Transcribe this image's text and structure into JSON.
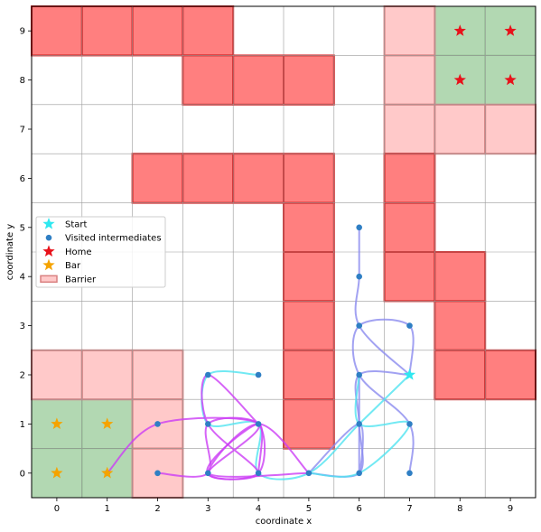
{
  "chart_data": {
    "type": "grid-path",
    "title": "",
    "xlabel": "coordinate x",
    "ylabel": "coordinate y",
    "xlim": [
      -0.5,
      9.5
    ],
    "ylim": [
      -0.5,
      9.5
    ],
    "xticks": [
      "0",
      "1",
      "2",
      "3",
      "4",
      "5",
      "6",
      "7",
      "8",
      "9"
    ],
    "yticks": [
      "0",
      "1",
      "2",
      "3",
      "4",
      "5",
      "6",
      "7",
      "8",
      "9"
    ],
    "grid": true,
    "legend_position": "center-left",
    "legend": [
      {
        "key": "start",
        "label": "Start"
      },
      {
        "key": "visited",
        "label": "Visited intermediates"
      },
      {
        "key": "home",
        "label": "Home"
      },
      {
        "key": "bar",
        "label": "Bar"
      },
      {
        "key": "barrier",
        "label": "Barrier"
      }
    ],
    "colors": {
      "barrier": "#ff7f7f",
      "barrier_edge": "#d62728",
      "soft_barrier": "#ffc9c9",
      "soft_barrier_edge": "#d98080",
      "home_area": "#b2d8b2",
      "start": "#2fe8f0",
      "visited": "#2f7fc4",
      "home": "#e8111a",
      "bar": "#f5a300",
      "gridline": "#9a9a9a"
    },
    "barriers": [
      [
        0,
        9
      ],
      [
        1,
        9
      ],
      [
        2,
        9
      ],
      [
        3,
        9
      ],
      [
        3,
        8
      ],
      [
        4,
        8
      ],
      [
        5,
        8
      ],
      [
        2,
        6
      ],
      [
        3,
        6
      ],
      [
        4,
        6
      ],
      [
        5,
        6
      ],
      [
        7,
        6
      ],
      [
        5,
        5
      ],
      [
        7,
        5
      ],
      [
        5,
        4
      ],
      [
        7,
        4
      ],
      [
        8,
        4
      ],
      [
        5,
        3
      ],
      [
        8,
        3
      ],
      [
        5,
        2
      ],
      [
        8,
        2
      ],
      [
        9,
        2
      ],
      [
        5,
        1
      ]
    ],
    "soft_barriers": [
      [
        7,
        9
      ],
      [
        7,
        8
      ],
      [
        7,
        7
      ],
      [
        8,
        7
      ],
      [
        9,
        7
      ],
      [
        0,
        2
      ],
      [
        1,
        2
      ],
      [
        2,
        2
      ],
      [
        2,
        1
      ],
      [
        2,
        0
      ]
    ],
    "home_cells": [
      [
        8,
        9
      ],
      [
        9,
        9
      ],
      [
        8,
        8
      ],
      [
        9,
        8
      ]
    ],
    "bar_cells": [
      [
        0,
        1
      ],
      [
        1,
        1
      ],
      [
        0,
        0
      ],
      [
        1,
        0
      ]
    ],
    "home_markers": [
      [
        8,
        9
      ],
      [
        9,
        9
      ],
      [
        8,
        8
      ],
      [
        9,
        8
      ]
    ],
    "bar_markers": [
      [
        0,
        1
      ],
      [
        1,
        1
      ],
      [
        0,
        0
      ],
      [
        1,
        0
      ]
    ],
    "start_points": [
      [
        7,
        2
      ]
    ],
    "visited_points": [
      [
        6,
        5
      ],
      [
        6,
        4
      ],
      [
        6,
        3
      ],
      [
        7,
        3
      ],
      [
        6,
        2
      ],
      [
        6,
        1
      ],
      [
        7,
        1
      ],
      [
        6,
        0
      ],
      [
        7,
        0
      ],
      [
        5,
        0
      ],
      [
        4,
        0
      ],
      [
        4,
        1
      ],
      [
        3,
        1
      ],
      [
        3,
        0
      ],
      [
        2,
        0
      ],
      [
        2,
        1
      ],
      [
        3,
        2
      ],
      [
        4,
        2
      ],
      [
        1,
        0
      ]
    ],
    "paths_blue": [
      [
        [
          7,
          2
        ],
        [
          6,
          2
        ],
        [
          6,
          1
        ],
        [
          6,
          0
        ],
        [
          5,
          0
        ]
      ],
      [
        [
          7,
          2
        ],
        [
          6,
          3
        ],
        [
          6,
          4
        ],
        [
          6,
          5
        ]
      ],
      [
        [
          7,
          2
        ],
        [
          7,
          3
        ],
        [
          6,
          3
        ],
        [
          6,
          2
        ],
        [
          7,
          1
        ],
        [
          7,
          0
        ]
      ],
      [
        [
          6,
          2
        ],
        [
          6,
          0
        ],
        [
          6,
          1
        ],
        [
          5,
          0
        ]
      ]
    ],
    "paths_cyan": [
      [
        [
          7,
          2
        ],
        [
          6,
          1
        ],
        [
          5,
          0
        ],
        [
          4,
          0
        ],
        [
          4,
          1
        ],
        [
          3,
          1
        ],
        [
          3,
          2
        ],
        [
          4,
          2
        ]
      ],
      [
        [
          6,
          2
        ],
        [
          6,
          1
        ],
        [
          7,
          1
        ],
        [
          6,
          0
        ],
        [
          5,
          0
        ]
      ]
    ],
    "paths_purple": [
      [
        [
          5,
          0
        ],
        [
          4,
          1
        ],
        [
          3,
          0
        ],
        [
          4,
          0
        ],
        [
          4,
          1
        ],
        [
          3,
          1
        ],
        [
          3,
          0
        ],
        [
          2,
          0
        ]
      ],
      [
        [
          4,
          1
        ],
        [
          3,
          2
        ],
        [
          3,
          1
        ],
        [
          4,
          0
        ],
        [
          3,
          0
        ],
        [
          4,
          1
        ],
        [
          2,
          1
        ],
        [
          1,
          0
        ]
      ],
      [
        [
          4,
          0
        ],
        [
          4,
          1
        ],
        [
          3,
          0
        ],
        [
          5,
          0
        ]
      ]
    ]
  }
}
